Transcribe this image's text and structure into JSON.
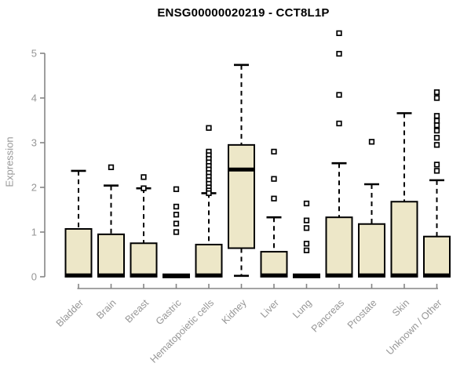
{
  "chart_data": {
    "type": "boxplot",
    "title": "ENSG00000020219 - CCT8L1P",
    "ylabel": "Expression",
    "xlabel": "",
    "ylim": [
      0,
      5.6
    ],
    "yticks": [
      "0",
      "1",
      "2",
      "3",
      "4",
      "5"
    ],
    "grid": false,
    "legend": "none",
    "categories": [
      "Bladder",
      "Brain",
      "Breast",
      "Gastric",
      "Hematopoietic cells",
      "Kidney",
      "Liver",
      "Lung",
      "Pancreas",
      "Prostate",
      "Skin",
      "Unknown / Other"
    ],
    "series": [
      {
        "category": "Bladder",
        "whislo": 0,
        "q1": 0,
        "med": 0.03,
        "q3": 1.07,
        "whishi": 2.37,
        "outliers": []
      },
      {
        "category": "Brain",
        "whislo": 0,
        "q1": 0,
        "med": 0.03,
        "q3": 0.95,
        "whishi": 2.04,
        "outliers": [
          2.45
        ]
      },
      {
        "category": "Breast",
        "whislo": 0,
        "q1": 0,
        "med": 0.03,
        "q3": 0.75,
        "whishi": 1.98,
        "outliers": [
          2.23,
          1.98
        ]
      },
      {
        "category": "Gastric",
        "whislo": 0,
        "q1": 0,
        "med": 0.02,
        "q3": 0.02,
        "whishi": 0.02,
        "outliers": [
          1.96,
          1.57,
          1.39,
          1.19,
          1.0
        ]
      },
      {
        "category": "Hematopoietic cells",
        "whislo": 0,
        "q1": 0,
        "med": 0.03,
        "q3": 0.72,
        "whishi": 1.87,
        "outliers": [
          3.33,
          2.8,
          2.72,
          2.64,
          2.56,
          2.48,
          2.4,
          2.32,
          2.24,
          2.16,
          2.08,
          2.0,
          1.93,
          1.87
        ]
      },
      {
        "category": "Kidney",
        "whislo": 0.02,
        "q1": 0.64,
        "med": 2.4,
        "q3": 2.95,
        "whishi": 4.74,
        "outliers": []
      },
      {
        "category": "Liver",
        "whislo": 0,
        "q1": 0,
        "med": 0.03,
        "q3": 0.56,
        "whishi": 1.33,
        "outliers": [
          2.8,
          2.19,
          1.75
        ]
      },
      {
        "category": "Lung",
        "whislo": 0,
        "q1": 0,
        "med": 0.02,
        "q3": 0.02,
        "whishi": 0.02,
        "outliers": [
          1.64,
          1.26,
          1.09,
          0.74,
          0.59
        ]
      },
      {
        "category": "Pancreas",
        "whislo": 0,
        "q1": 0,
        "med": 0.03,
        "q3": 1.33,
        "whishi": 2.54,
        "outliers": [
          5.45,
          4.99,
          4.07,
          3.43
        ]
      },
      {
        "category": "Prostate",
        "whislo": 0,
        "q1": 0,
        "med": 0.03,
        "q3": 1.18,
        "whishi": 2.07,
        "outliers": [
          3.02
        ]
      },
      {
        "category": "Skin",
        "whislo": 0,
        "q1": 0,
        "med": 0.03,
        "q3": 1.68,
        "whishi": 3.66,
        "outliers": []
      },
      {
        "category": "Unknown / Other",
        "whislo": 0,
        "q1": 0,
        "med": 0.03,
        "q3": 0.9,
        "whishi": 2.16,
        "outliers": [
          4.13,
          4.0,
          3.6,
          3.49,
          3.39,
          3.27,
          3.11,
          2.95,
          2.51,
          2.37
        ]
      }
    ],
    "colors": {
      "box_fill": "#EDE7C8",
      "box_border": "#000000",
      "median": "#000000",
      "whisker": "#000000",
      "outlier_stroke": "#000000",
      "axis_line": "#858585",
      "tick_label": "#969696",
      "title": "#000000",
      "background": "#FFFFFF"
    }
  }
}
